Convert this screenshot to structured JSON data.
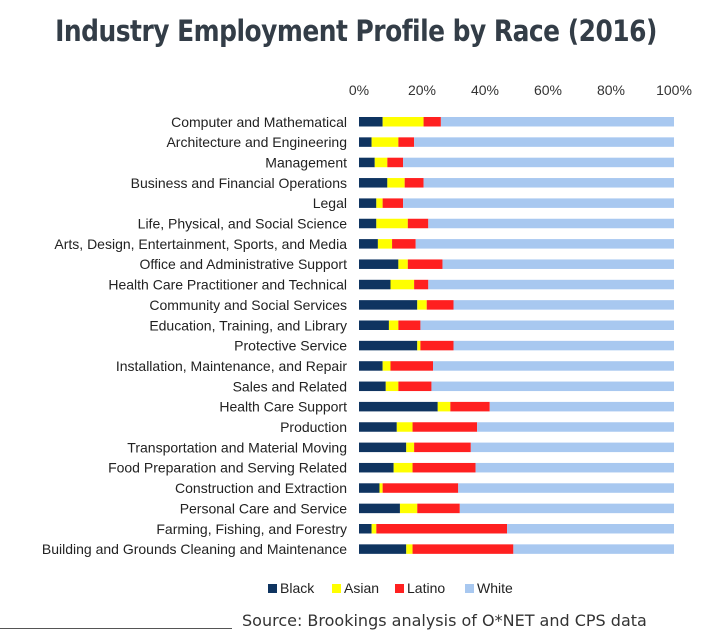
{
  "chart_data": {
    "type": "bar",
    "orientation": "horizontal",
    "stacked": true,
    "title": "Industry Employment Profile by Race (2016)",
    "categories": [
      "Computer and Mathematical",
      "Architecture and Engineering",
      "Management",
      "Business and Financial Operations",
      "Legal",
      "Life, Physical, and Social Science",
      "Arts, Design, Entertainment, Sports, and Media",
      "Office and Administrative Support",
      "Health Care Practitioner and Technical",
      "Community and Social Services",
      "Education, Training, and Library",
      "Protective Service",
      "Installation, Maintenance, and Repair",
      "Sales and Related",
      "Health Care Support",
      "Production",
      "Transportation and Material Moving",
      "Food Preparation and Serving Related",
      "Construction and Extraction",
      "Personal Care and Service",
      "Farming, Fishing, and Forestry",
      "Building and Grounds Cleaning and Maintenance"
    ],
    "series": [
      {
        "name": "Black",
        "color": "#0f3460",
        "values": [
          7.5,
          4,
          5,
          9,
          5.5,
          5.5,
          6,
          12.5,
          10,
          18.5,
          9.5,
          18.5,
          7.5,
          8.5,
          25,
          12,
          15,
          11,
          6.5,
          13,
          4,
          15
        ]
      },
      {
        "name": "Asian",
        "color": "#ffff00",
        "values": [
          13,
          8.5,
          4,
          5.5,
          2,
          10,
          4.5,
          3,
          7.5,
          3,
          3,
          1,
          2.5,
          4,
          4,
          5,
          2.5,
          6,
          1,
          5.5,
          1.5,
          2
        ]
      },
      {
        "name": "Latino",
        "color": "#ff2020",
        "values": [
          5.5,
          5,
          5,
          6,
          6.5,
          6.5,
          7.5,
          11,
          4.5,
          8.5,
          7,
          10.5,
          13.5,
          10.5,
          12.5,
          20.5,
          18,
          20,
          24,
          13.5,
          41.5,
          32
        ]
      },
      {
        "name": "White",
        "color": "#a8c8f0",
        "values": [
          74,
          82.5,
          86,
          79.5,
          86,
          78,
          82,
          73.5,
          78,
          70,
          80.5,
          70,
          76.5,
          77,
          58.5,
          62.5,
          64.5,
          63,
          68.5,
          68,
          53,
          51
        ]
      }
    ],
    "xlim": [
      0,
      100
    ],
    "x_ticks": [
      "0%",
      "20%",
      "40%",
      "60%",
      "80%",
      "100%"
    ],
    "xaxis_position": "top",
    "grid": false,
    "legend_position": "bottom",
    "legend": [
      "Black",
      "Asian",
      "Latino",
      "White"
    ]
  },
  "source": "Source: Brookings analysis of O*NET and CPS data"
}
